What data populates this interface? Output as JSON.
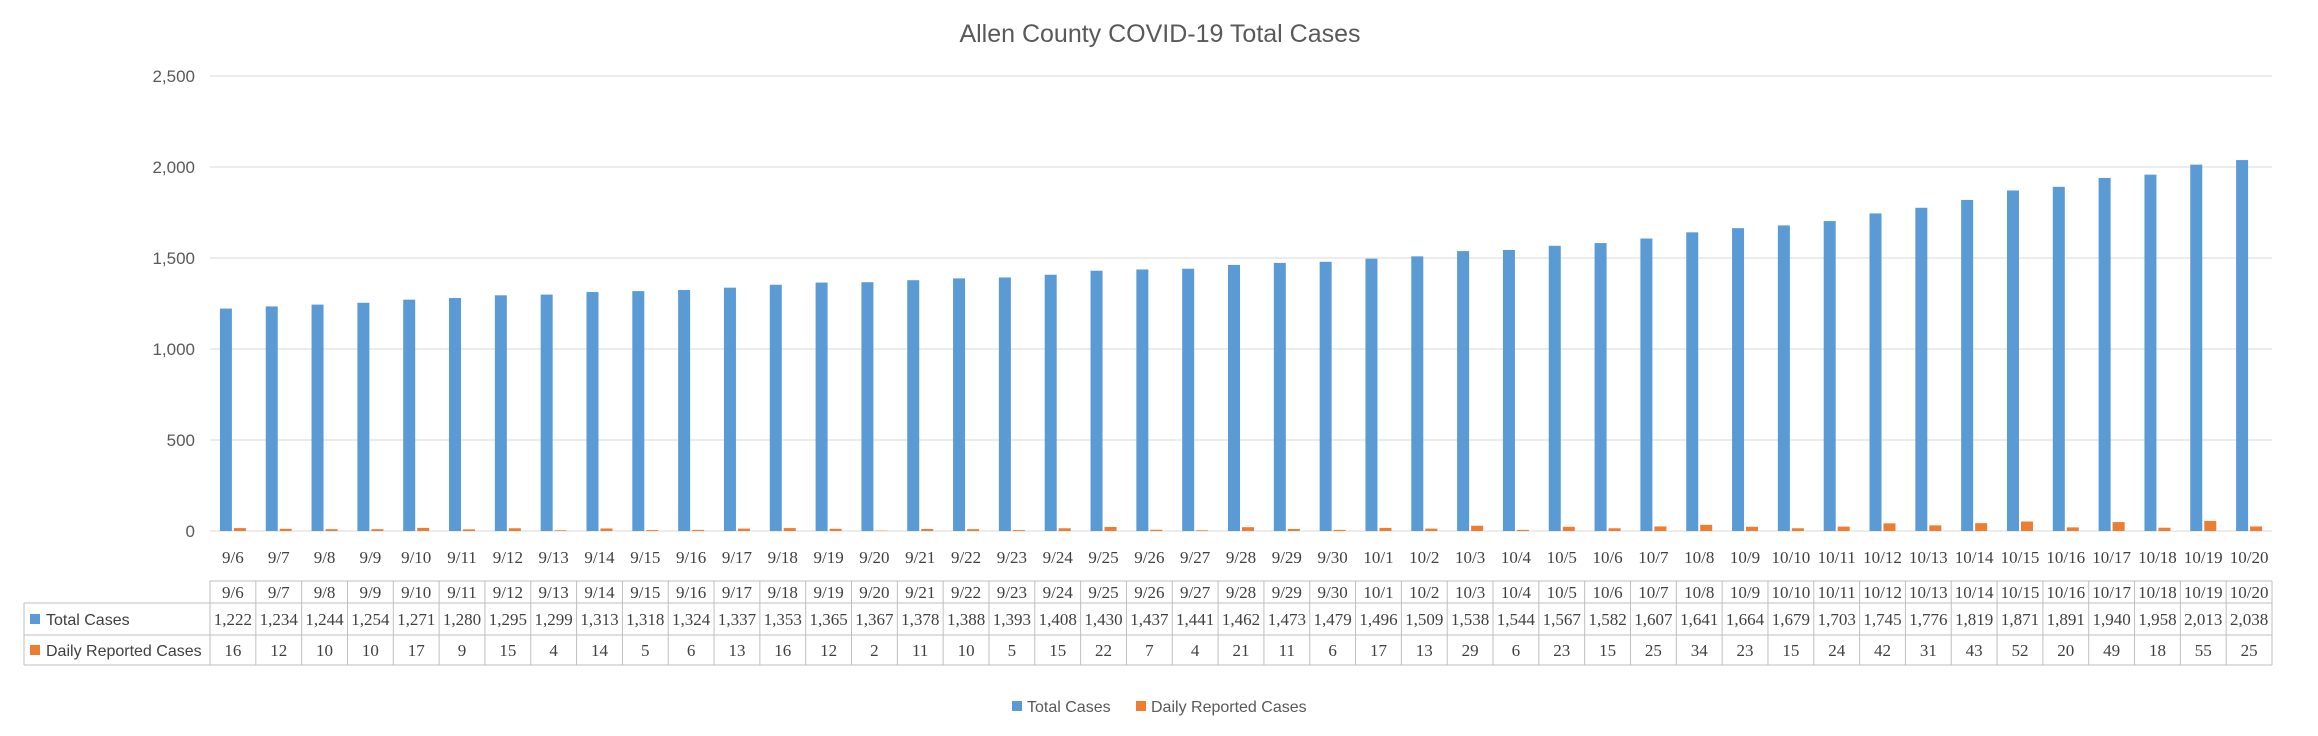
{
  "chart_data": {
    "type": "bar",
    "title": "Allen County COVID-19 Total Cases",
    "ylim": [
      0,
      2500
    ],
    "yticks": [
      "0",
      "500",
      "1,000",
      "1,500",
      "2,000",
      "2,500"
    ],
    "grid": true,
    "legend_position": "bottom",
    "data_table": true,
    "categories": [
      "9/6",
      "9/7",
      "9/8",
      "9/9",
      "9/10",
      "9/11",
      "9/12",
      "9/13",
      "9/14",
      "9/15",
      "9/16",
      "9/17",
      "9/18",
      "9/19",
      "9/20",
      "9/21",
      "9/22",
      "9/23",
      "9/24",
      "9/25",
      "9/26",
      "9/27",
      "9/28",
      "9/29",
      "9/30",
      "10/1",
      "10/2",
      "10/3",
      "10/4",
      "10/5",
      "10/6",
      "10/7",
      "10/8",
      "10/9",
      "10/10",
      "10/11",
      "10/12",
      "10/13",
      "10/14",
      "10/15",
      "10/16",
      "10/17",
      "10/18",
      "10/19",
      "10/20"
    ],
    "series": [
      {
        "name": "Total Cases",
        "color": "#5B9BD5",
        "values": [
          1222,
          1234,
          1244,
          1254,
          1271,
          1280,
          1295,
          1299,
          1313,
          1318,
          1324,
          1337,
          1353,
          1365,
          1367,
          1378,
          1388,
          1393,
          1408,
          1430,
          1437,
          1441,
          1462,
          1473,
          1479,
          1496,
          1509,
          1538,
          1544,
          1567,
          1582,
          1607,
          1641,
          1664,
          1679,
          1703,
          1745,
          1776,
          1819,
          1871,
          1891,
          1940,
          1958,
          2013,
          2038
        ],
        "labels": [
          "1,222",
          "1,234",
          "1,244",
          "1,254",
          "1,271",
          "1,280",
          "1,295",
          "1,299",
          "1,313",
          "1,318",
          "1,324",
          "1,337",
          "1,353",
          "1,365",
          "1,367",
          "1,378",
          "1,388",
          "1,393",
          "1,408",
          "1,430",
          "1,437",
          "1,441",
          "1,462",
          "1,473",
          "1,479",
          "1,496",
          "1,509",
          "1,538",
          "1,544",
          "1,567",
          "1,582",
          "1,607",
          "1,641",
          "1,664",
          "1,679",
          "1,703",
          "1,745",
          "1,776",
          "1,819",
          "1,871",
          "1,891",
          "1,940",
          "1,958",
          "2,013",
          "2,038"
        ]
      },
      {
        "name": "Daily Reported Cases",
        "color": "#ED7D31",
        "values": [
          16,
          12,
          10,
          10,
          17,
          9,
          15,
          4,
          14,
          5,
          6,
          13,
          16,
          12,
          2,
          11,
          10,
          5,
          15,
          22,
          7,
          4,
          21,
          11,
          6,
          17,
          13,
          29,
          6,
          23,
          15,
          25,
          34,
          23,
          15,
          24,
          42,
          31,
          43,
          52,
          20,
          49,
          18,
          55,
          25
        ],
        "labels": [
          "16",
          "12",
          "10",
          "10",
          "17",
          "9",
          "15",
          "4",
          "14",
          "5",
          "6",
          "13",
          "16",
          "12",
          "2",
          "11",
          "10",
          "5",
          "15",
          "22",
          "7",
          "4",
          "21",
          "11",
          "6",
          "17",
          "13",
          "29",
          "6",
          "23",
          "15",
          "25",
          "34",
          "23",
          "15",
          "24",
          "42",
          "31",
          "43",
          "52",
          "20",
          "49",
          "18",
          "55",
          "25"
        ]
      }
    ]
  }
}
